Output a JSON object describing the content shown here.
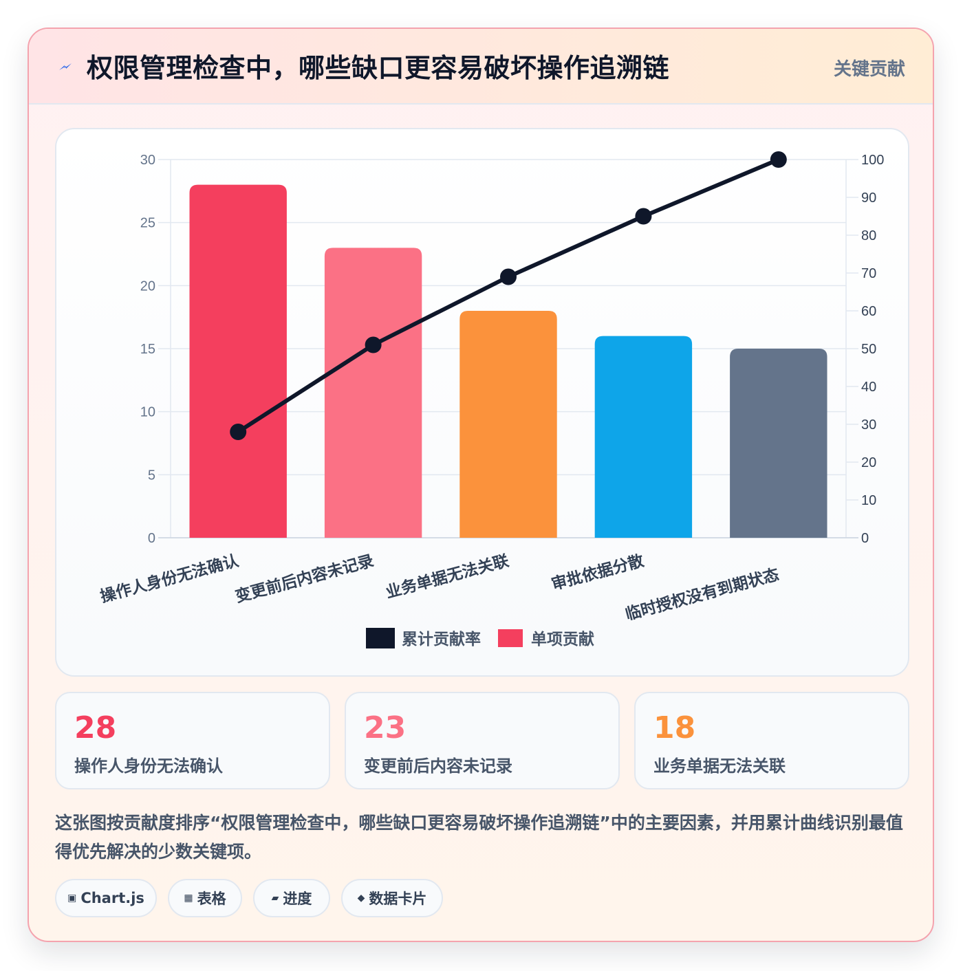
{
  "header": {
    "title": "权限管理检查中，哪些缺口更容易破坏操作追溯链",
    "tag": "关键贡献",
    "icon": "lightning-icon"
  },
  "chart_data": {
    "type": "bar",
    "categories": [
      "操作人身份无法确认",
      "变更前后内容未记录",
      "业务单据无法关联",
      "审批依据分散",
      "临时授权没有到期状态"
    ],
    "series": [
      {
        "name": "单项贡献",
        "type": "bar",
        "axis": "left",
        "values": [
          28,
          23,
          18,
          16,
          15
        ],
        "colors": [
          "#f43f5e",
          "#fb7185",
          "#fb923c",
          "#0ea5e9",
          "#64748b"
        ]
      },
      {
        "name": "累计贡献率",
        "type": "line",
        "axis": "right",
        "values": [
          28,
          51,
          69,
          85,
          100
        ],
        "color": "#0f172a"
      }
    ],
    "y_left": {
      "min": 0,
      "max": 30,
      "ticks": [
        0,
        5,
        10,
        15,
        20,
        25,
        30
      ]
    },
    "y_right": {
      "min": 0,
      "max": 100,
      "ticks": [
        0,
        10,
        20,
        30,
        40,
        50,
        60,
        70,
        80,
        90,
        100
      ]
    },
    "grid": true,
    "legend_position": "bottom"
  },
  "stats": [
    {
      "value": "28",
      "label": "操作人身份无法确认",
      "color": "#f43f5e"
    },
    {
      "value": "23",
      "label": "变更前后内容未记录",
      "color": "#fb7185"
    },
    {
      "value": "18",
      "label": "业务单据无法关联",
      "color": "#fb923c"
    }
  ],
  "description": "这张图按贡献度排序“权限管理检查中，哪些缺口更容易破坏操作追溯链”中的主要因素，并用累计曲线识别最值得优先解决的少数关键项。",
  "chips": [
    {
      "icon": "▣",
      "label": "Chart.js"
    },
    {
      "icon": "▦",
      "label": "表格"
    },
    {
      "icon": "▰",
      "label": "进度"
    },
    {
      "icon": "◆",
      "label": "数据卡片"
    }
  ]
}
